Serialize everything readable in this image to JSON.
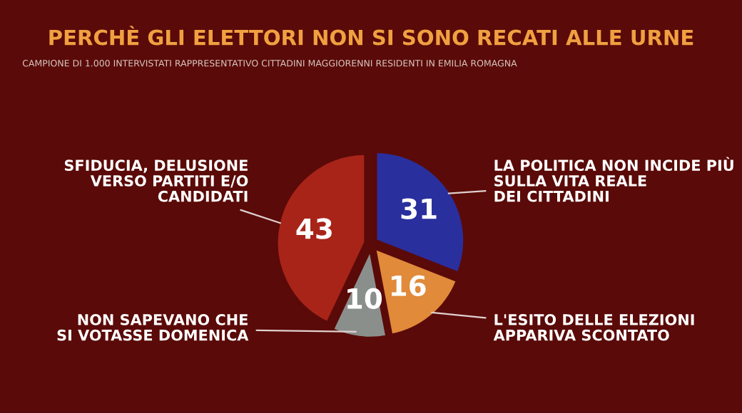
{
  "chart_data": {
    "type": "pie",
    "title": "PERCHÈ GLI ELETTORI NON SI SONO RECATI ALLE URNE",
    "subtitle": "CAMPIONE DI 1.000 INTERVISTATI RAPPRESENTATIVO CITTADINI MAGGIORENNI RESIDENTI IN EMILIA ROMAGNA",
    "categories": [
      "LA POLITICA NON INCIDE PIÙ\nSULLA VITA REALE\nDEI CITTADINI",
      "L'ESITO DELLE ELEZIONI\nAPPARIVA SCONTATO",
      "NON SAPEVANO CHE\nSI VOTASSE DOMENICA",
      "SFIDUCIA, DELUSIONE\nVERSO PARTITI E/O\nCANDIDATI"
    ],
    "values": [
      31,
      16,
      10,
      43
    ],
    "colors": [
      "#2a2f9e",
      "#e08a3a",
      "#8a8f8c",
      "#a82418"
    ],
    "data_labels": true
  }
}
